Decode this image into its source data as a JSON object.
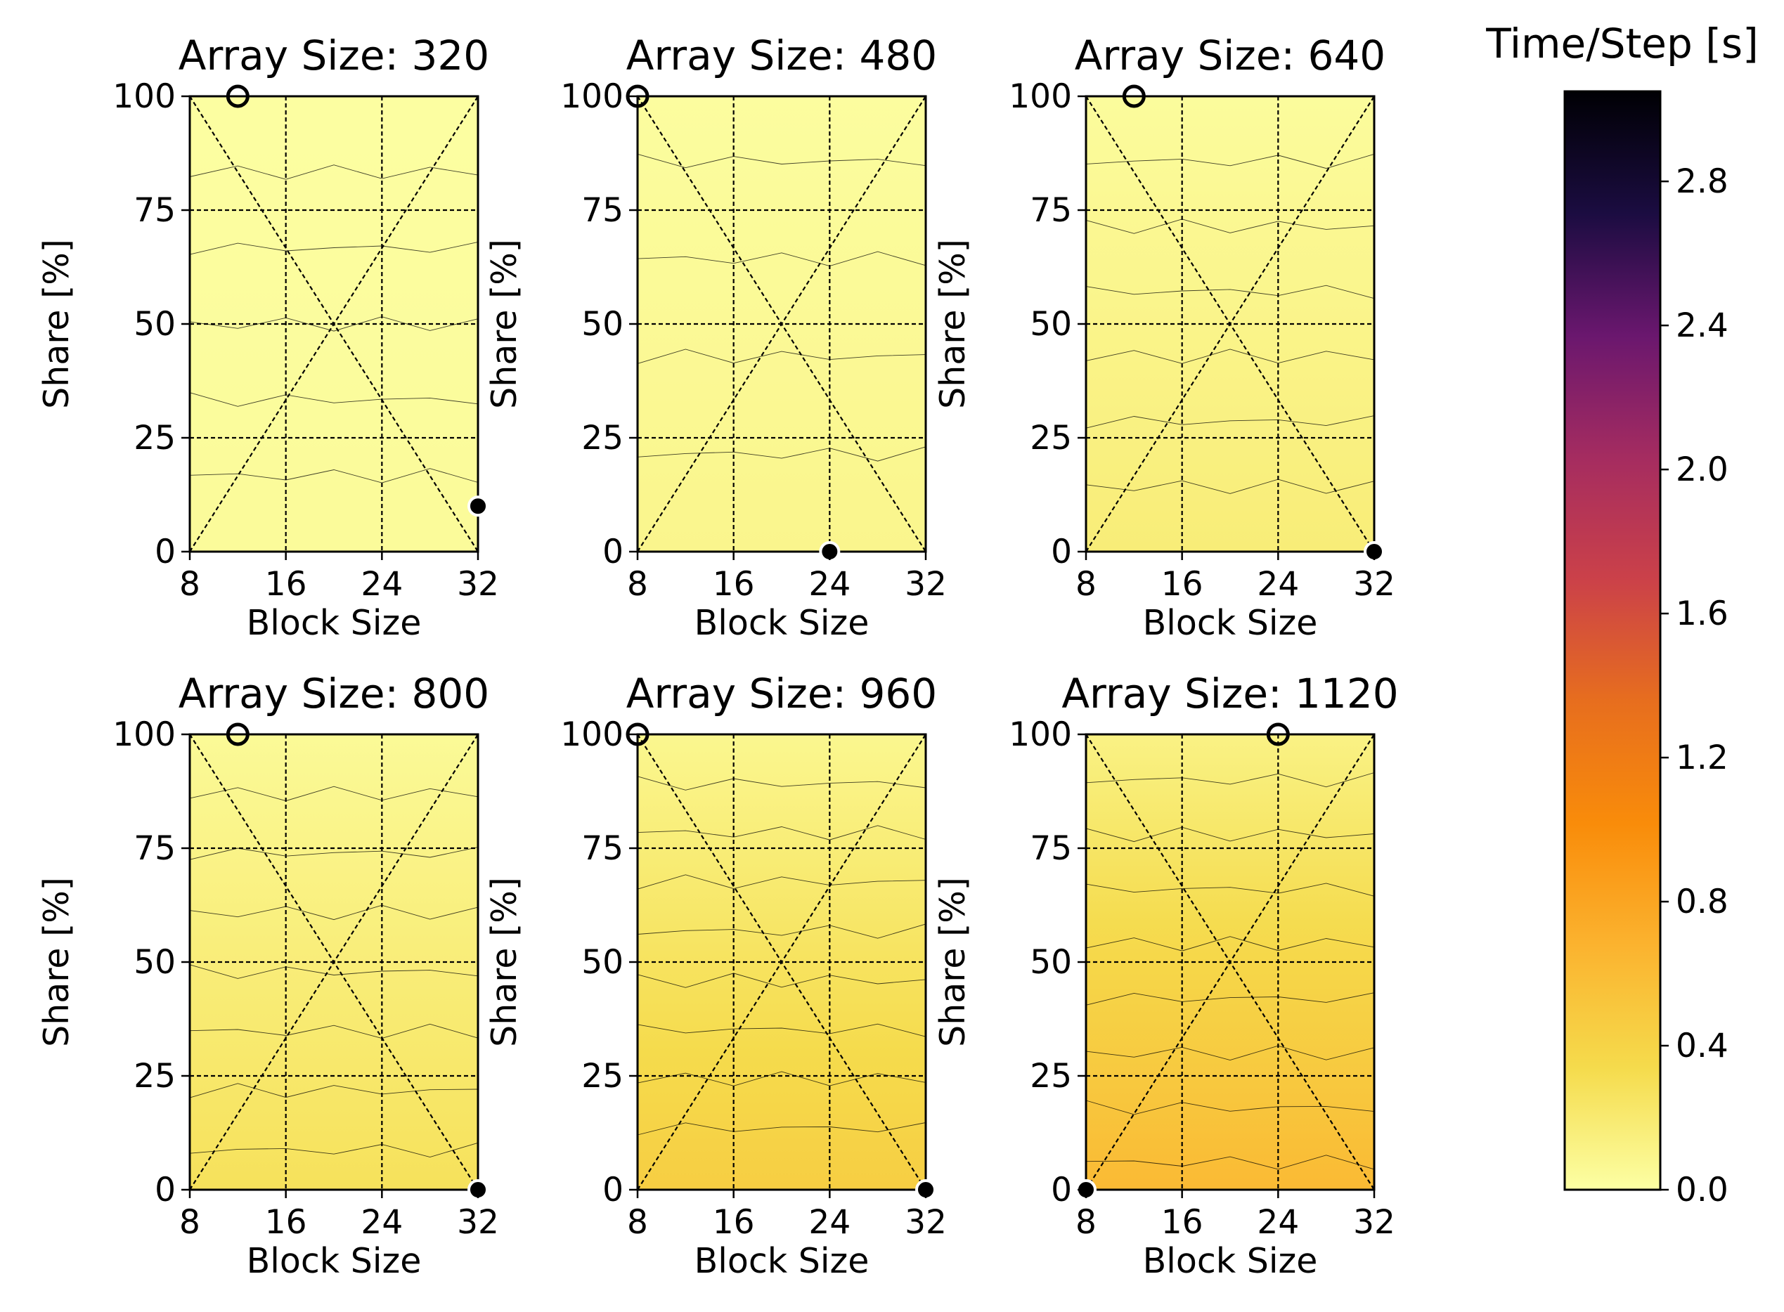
{
  "figure_colors": {
    "colormap": [
      "#fcffa4",
      "#f5db4c",
      "#fbb32f",
      "#f98c0a",
      "#e76e1e",
      "#cb4149",
      "#a52c60",
      "#6a176e",
      "#1b0c41",
      "#000004"
    ],
    "axis": "#000000",
    "guide_lines": "#000000",
    "contour_lines": "#000000"
  },
  "chart_data": [
    {
      "type": "heatmap",
      "title": "Array Size: 320",
      "xlabel": "Block Size",
      "ylabel": "Share [%]",
      "xticks": [
        "8",
        "16",
        "24",
        "32"
      ],
      "yticks": [
        "0",
        "25",
        "50",
        "75",
        "100"
      ],
      "xlim": [
        8,
        32
      ],
      "ylim": [
        0,
        100
      ],
      "time_at_share0_s": 0.04,
      "time_at_share100_s": 0.01,
      "contour_levels_s": [
        0.015,
        0.02,
        0.025,
        0.03,
        0.035
      ],
      "markers": [
        {
          "block": 12,
          "share": 100,
          "kind": "open"
        },
        {
          "block": 32,
          "share": 10,
          "kind": "filled"
        }
      ]
    },
    {
      "type": "heatmap",
      "title": "Array Size: 480",
      "xlabel": "Block Size",
      "ylabel": "Share [%]",
      "xticks": [
        "8",
        "16",
        "24",
        "32"
      ],
      "yticks": [
        "0",
        "25",
        "50",
        "75",
        "100"
      ],
      "xlim": [
        8,
        32
      ],
      "ylim": [
        0,
        100
      ],
      "time_at_share0_s": 0.09,
      "time_at_share100_s": 0.02,
      "contour_levels_s": [
        0.03,
        0.045,
        0.06,
        0.075
      ],
      "markers": [
        {
          "block": 8,
          "share": 100,
          "kind": "open"
        },
        {
          "block": 24,
          "share": 0,
          "kind": "filled"
        }
      ]
    },
    {
      "type": "heatmap",
      "title": "Array Size: 640",
      "xlabel": "Block Size",
      "ylabel": "Share [%]",
      "xticks": [
        "8",
        "16",
        "24",
        "32"
      ],
      "yticks": [
        "0",
        "25",
        "50",
        "75",
        "100"
      ],
      "xlim": [
        8,
        32
      ],
      "ylim": [
        0,
        100
      ],
      "time_at_share0_s": 0.17,
      "time_at_share100_s": 0.03,
      "contour_levels_s": [
        0.05,
        0.07,
        0.09,
        0.11,
        0.13,
        0.15
      ],
      "markers": [
        {
          "block": 12,
          "share": 100,
          "kind": "open"
        },
        {
          "block": 32,
          "share": 0,
          "kind": "filled"
        }
      ]
    },
    {
      "type": "heatmap",
      "title": "Array Size: 800",
      "xlabel": "Block Size",
      "ylabel": "Share [%]",
      "xticks": [
        "8",
        "16",
        "24",
        "32"
      ],
      "yticks": [
        "0",
        "25",
        "50",
        "75",
        "100"
      ],
      "xlim": [
        8,
        32
      ],
      "ylim": [
        0,
        100
      ],
      "time_at_share0_s": 0.28,
      "time_at_share100_s": 0.05,
      "contour_levels_s": [
        0.08,
        0.11,
        0.14,
        0.17,
        0.2,
        0.23,
        0.26
      ],
      "markers": [
        {
          "block": 12,
          "share": 100,
          "kind": "open"
        },
        {
          "block": 32,
          "share": 0,
          "kind": "filled"
        }
      ]
    },
    {
      "type": "heatmap",
      "title": "Array Size: 960",
      "xlabel": "Block Size",
      "ylabel": "Share [%]",
      "xticks": [
        "8",
        "16",
        "24",
        "32"
      ],
      "yticks": [
        "0",
        "25",
        "50",
        "75",
        "100"
      ],
      "xlim": [
        8,
        32
      ],
      "ylim": [
        0,
        100
      ],
      "time_at_share0_s": 0.45,
      "time_at_share100_s": 0.08,
      "contour_levels_s": [
        0.12,
        0.16,
        0.2,
        0.24,
        0.28,
        0.32,
        0.36,
        0.4
      ],
      "markers": [
        {
          "block": 8,
          "share": 100,
          "kind": "open"
        },
        {
          "block": 32,
          "share": 0,
          "kind": "filled"
        }
      ]
    },
    {
      "type": "heatmap",
      "title": "Array Size: 1120",
      "xlabel": "Block Size",
      "ylabel": "Share [%]",
      "xticks": [
        "8",
        "16",
        "24",
        "32"
      ],
      "yticks": [
        "0",
        "25",
        "50",
        "75",
        "100"
      ],
      "xlim": [
        8,
        32
      ],
      "ylim": [
        0,
        100
      ],
      "time_at_share0_s": 0.62,
      "time_at_share100_s": 0.12,
      "contour_levels_s": [
        0.17,
        0.23,
        0.29,
        0.35,
        0.41,
        0.47,
        0.53,
        0.59
      ],
      "markers": [
        {
          "block": 24,
          "share": 100,
          "kind": "open"
        },
        {
          "block": 8,
          "share": 0,
          "kind": "filled"
        }
      ]
    },
    {
      "type": "colorbar",
      "title": "Time/Step [s]",
      "range": [
        0.0,
        3.05
      ],
      "ticks": [
        "0.0",
        "0.4",
        "0.8",
        "1.2",
        "1.6",
        "2.0",
        "2.4",
        "2.8"
      ],
      "cmap": "inferno_r"
    }
  ]
}
